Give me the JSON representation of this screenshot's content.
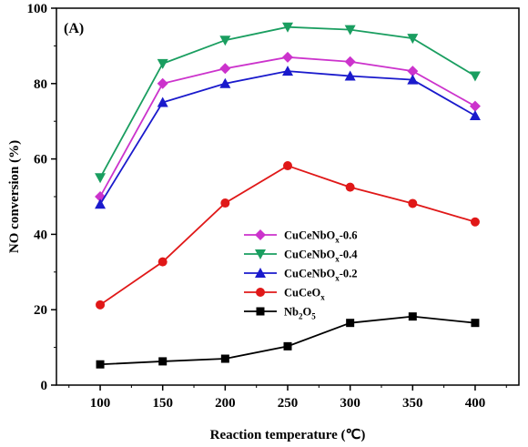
{
  "chart_data": {
    "type": "line",
    "panel_label": "(A)",
    "xlabel": "Reaction temperature (℃)",
    "ylabel": "NO conversion (%)",
    "x": [
      100,
      150,
      200,
      250,
      300,
      350,
      400
    ],
    "xticks": [
      "100",
      "150",
      "200",
      "250",
      "300",
      "350",
      "400"
    ],
    "yticks": [
      "0",
      "20",
      "40",
      "60",
      "80",
      "100"
    ],
    "xlim": [
      65,
      435
    ],
    "ylim": [
      0,
      100
    ],
    "grid": false,
    "legend_position": "center-left",
    "series": [
      {
        "name": "CuCeNbOx-0.6",
        "label_main": "CuCeNbO",
        "label_sub": "x",
        "label_tail": "-0.6",
        "color": "#cc33cc",
        "marker": "diamond",
        "values": [
          50,
          80,
          84,
          87,
          85.8,
          83.3,
          74
        ]
      },
      {
        "name": "CuCeNbOx-0.4",
        "label_main": "CuCeNbO",
        "label_sub": "x",
        "label_tail": "-0.4",
        "color": "#1a9e60",
        "marker": "triangle-down",
        "values": [
          55,
          85.3,
          91.5,
          95,
          94.3,
          92,
          82
        ]
      },
      {
        "name": "CuCeNbOx-0.2",
        "label_main": "CuCeNbO",
        "label_sub": "x",
        "label_tail": "-0.2",
        "color": "#1a1acc",
        "marker": "triangle-up",
        "values": [
          48,
          75,
          80,
          83.3,
          82,
          81,
          71.5
        ]
      },
      {
        "name": "CuCeOx",
        "label_main": "CuCeO",
        "label_sub": "x",
        "label_tail": "",
        "color": "#e01818",
        "marker": "circle",
        "values": [
          21.3,
          32.7,
          48.3,
          58.2,
          52.5,
          48.2,
          43.3
        ]
      },
      {
        "name": "Nb2O5",
        "label_main": "Nb",
        "label_sub": "2",
        "label_tail": "O",
        "label_sub2": "5",
        "color": "#000000",
        "marker": "square",
        "values": [
          5.5,
          6.3,
          7,
          10.3,
          16.5,
          18.2,
          16.5
        ]
      }
    ]
  }
}
